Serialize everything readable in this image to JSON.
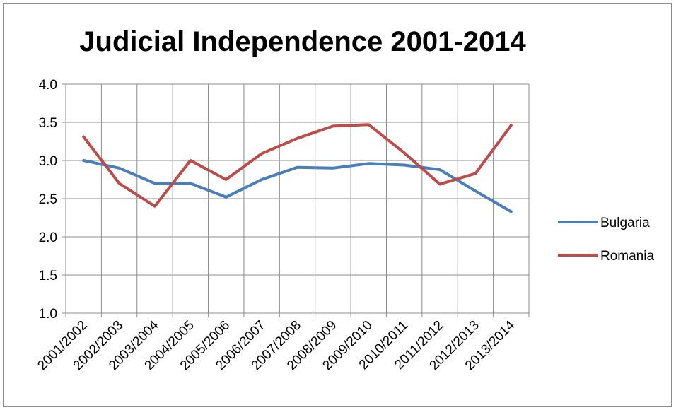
{
  "chart_data": {
    "type": "line",
    "title": "Judicial Independence 2001-2014",
    "xlabel": "",
    "ylabel": "",
    "categories": [
      "2001/2002",
      "2002/2003",
      "2003/2004",
      "2004/2005",
      "2005/2006",
      "2006/2007",
      "2007/2008",
      "2008/2009",
      "2009/2010",
      "2010/2011",
      "2011/2012",
      "2012/2013",
      "2013/2014"
    ],
    "ylim": [
      1.0,
      4.0
    ],
    "yticks": [
      "1.0",
      "1.5",
      "2.0",
      "2.5",
      "3.0",
      "3.5",
      "4.0"
    ],
    "grid": true,
    "legend_position": "right",
    "series": [
      {
        "name": "Bulgaria",
        "color": "#4a7ebb",
        "values": [
          3.0,
          2.9,
          2.7,
          2.7,
          2.52,
          2.75,
          2.91,
          2.9,
          2.96,
          2.94,
          2.88,
          2.6,
          2.33
        ]
      },
      {
        "name": "Romania",
        "color": "#be4b48",
        "values": [
          3.31,
          2.7,
          2.4,
          3.0,
          2.75,
          3.09,
          3.29,
          3.45,
          3.47,
          3.1,
          2.69,
          2.83,
          3.46
        ]
      }
    ]
  }
}
